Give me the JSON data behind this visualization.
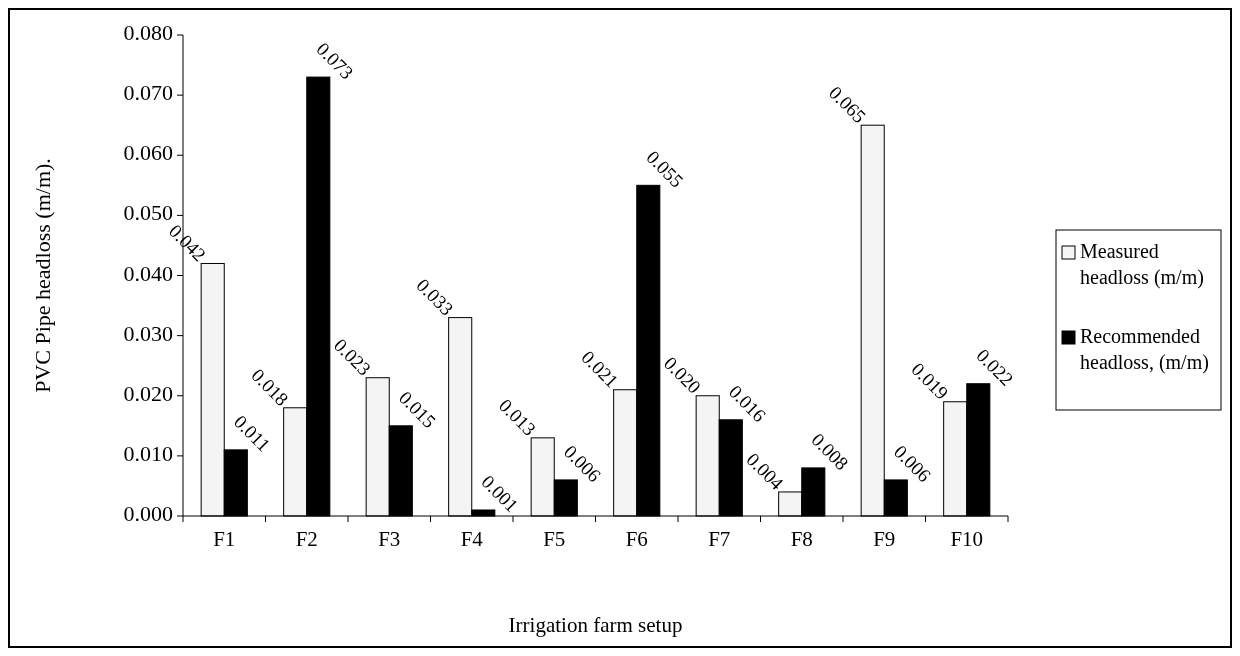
{
  "chart_data": {
    "type": "bar",
    "xlabel": "Irrigation farm setup",
    "ylabel": "PVC Pipe headloss (m/m).",
    "categories": [
      "F1",
      "F2",
      "F3",
      "F4",
      "F5",
      "F6",
      "F7",
      "F8",
      "F9",
      "F10"
    ],
    "series": [
      {
        "name": "Measured headloss (m/m)",
        "color": "#f4f4f4",
        "values": [
          0.042,
          0.018,
          0.023,
          0.033,
          0.013,
          0.021,
          0.02,
          0.004,
          0.065,
          0.019
        ],
        "value_labels": [
          "0.042",
          "0.018",
          "0.023",
          "0.033",
          "0.013",
          "0.021",
          "0.020",
          "0.004",
          "0.065",
          "0.019"
        ]
      },
      {
        "name": "Recommended headloss, (m/m)",
        "color": "#000000",
        "values": [
          0.011,
          0.073,
          0.015,
          0.001,
          0.006,
          0.055,
          0.016,
          0.008,
          0.006,
          0.022
        ],
        "value_labels": [
          "0.011",
          "0.073",
          "0.015",
          "0.001",
          "0.006",
          "0.055",
          "0.016",
          "0.008",
          "0.006",
          "0.022"
        ]
      }
    ],
    "ylim": [
      0,
      0.08
    ],
    "yticks": [
      {
        "value": 0,
        "label": "0.000"
      },
      {
        "value": 0.01,
        "label": "0.010"
      },
      {
        "value": 0.02,
        "label": "0.020"
      },
      {
        "value": 0.03,
        "label": "0.030"
      },
      {
        "value": 0.04,
        "label": "0.040"
      },
      {
        "value": 0.05,
        "label": "0.050"
      },
      {
        "value": 0.06,
        "label": "0.060"
      },
      {
        "value": 0.07,
        "label": "0.070"
      },
      {
        "value": 0.08,
        "label": "0.080"
      }
    ],
    "grid": false,
    "legend": "right"
  }
}
